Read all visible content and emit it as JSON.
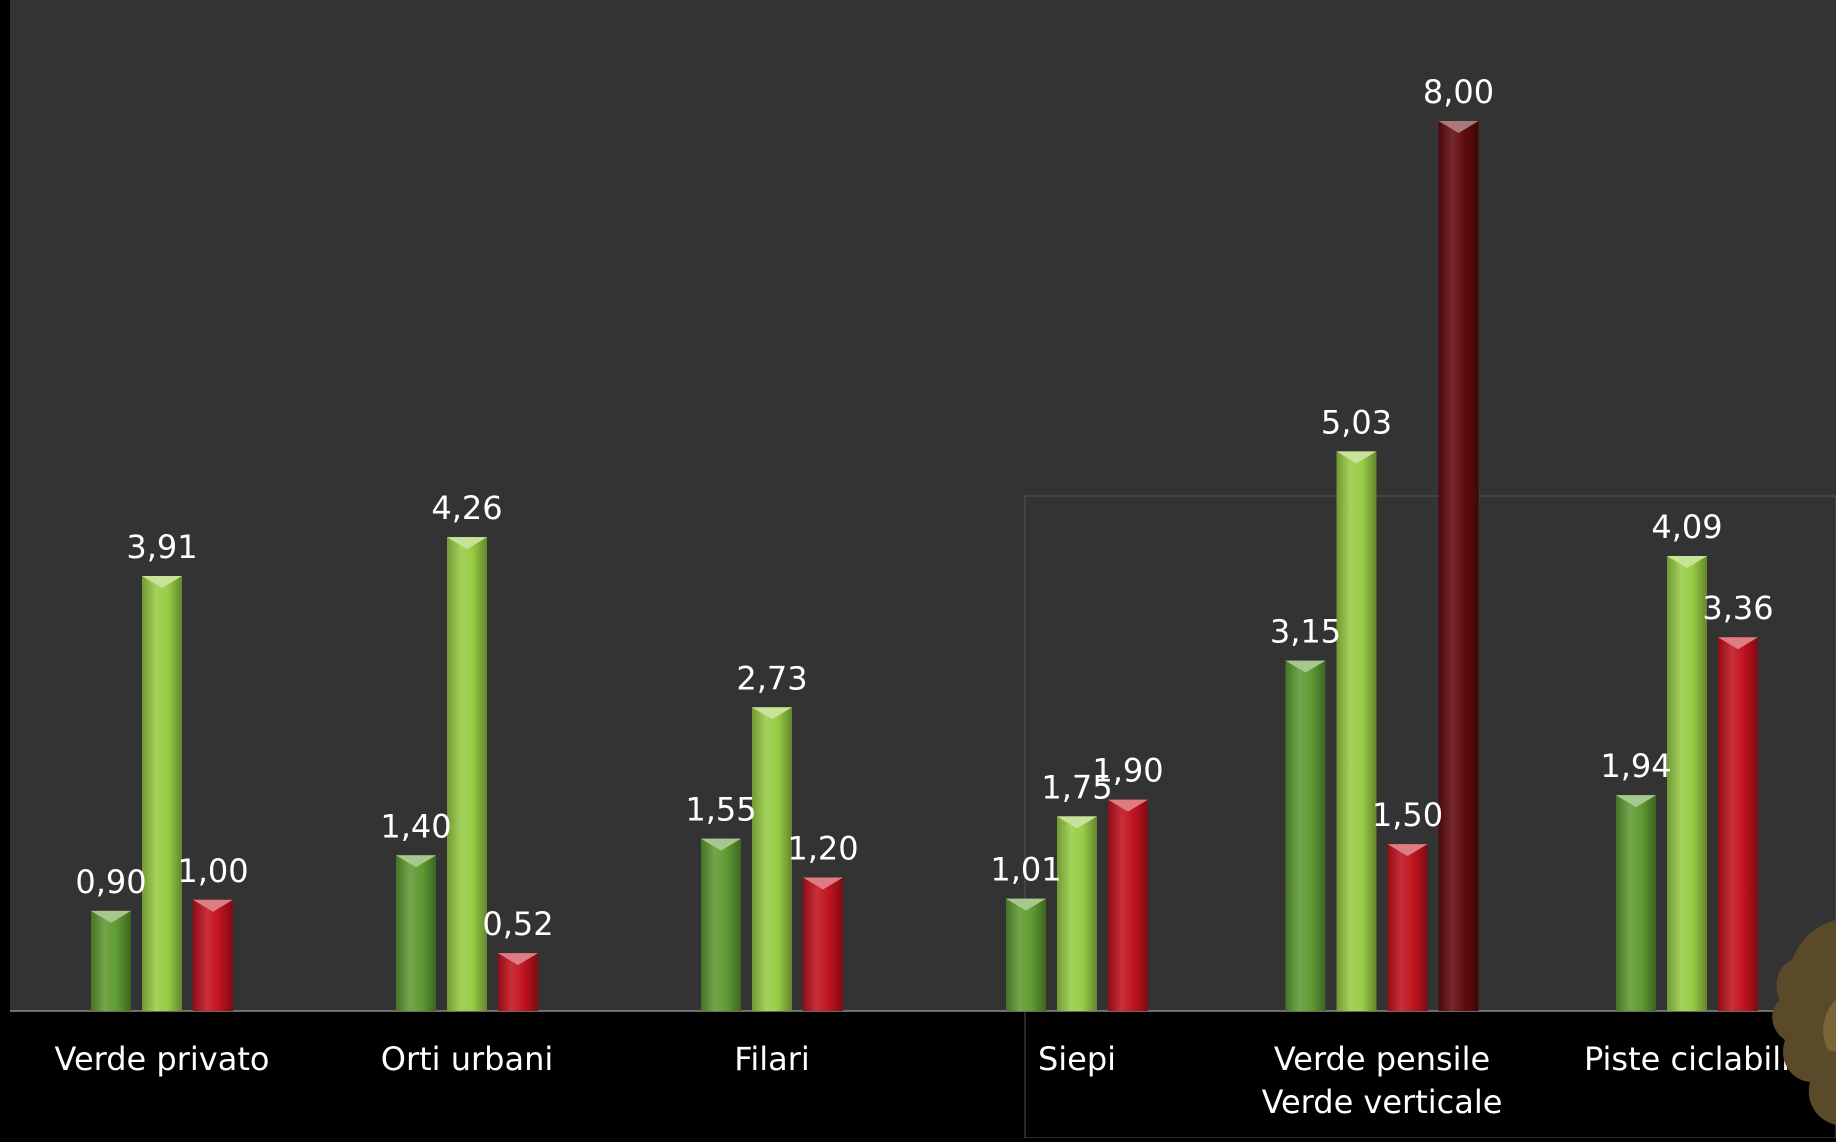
{
  "chart_data": {
    "type": "bar",
    "title": "",
    "xlabel": "",
    "ylabel": "",
    "ylim": [
      0,
      8.6
    ],
    "grid": false,
    "legend": "none",
    "value_format": "comma-decimal-2",
    "categories": [
      [
        "Verde privato"
      ],
      [
        "Orti urbani"
      ],
      [
        "Filari"
      ],
      [
        "Siepi"
      ],
      [
        "Verde pensile",
        "Verde verticale"
      ],
      [
        "Piste ciclabili"
      ]
    ],
    "bars": [
      [
        {
          "value": 0.9,
          "color": "#5f9a33"
        },
        {
          "value": 3.91,
          "color": "#98cc45"
        },
        {
          "value": 1.0,
          "color": "#c1131e"
        }
      ],
      [
        {
          "value": 1.4,
          "color": "#5f9a33"
        },
        {
          "value": 4.26,
          "color": "#98cc45"
        },
        {
          "value": 0.52,
          "color": "#c1131e"
        }
      ],
      [
        {
          "value": 1.55,
          "color": "#5f9a33"
        },
        {
          "value": 2.73,
          "color": "#98cc45"
        },
        {
          "value": 1.2,
          "color": "#c1131e"
        }
      ],
      [
        {
          "value": 1.01,
          "color": "#5f9a33"
        },
        {
          "value": 1.75,
          "color": "#98cc45"
        },
        {
          "value": 1.9,
          "color": "#c1131e"
        }
      ],
      [
        {
          "value": 3.15,
          "color": "#5f9a33"
        },
        {
          "value": 5.03,
          "color": "#98cc45"
        },
        {
          "value": 1.5,
          "color": "#c1131e"
        },
        {
          "value": 8.0,
          "color": "#620b0e"
        }
      ],
      [
        {
          "value": 1.94,
          "color": "#5f9a33"
        },
        {
          "value": 4.09,
          "color": "#98cc45"
        },
        {
          "value": 3.36,
          "color": "#c1131e"
        }
      ]
    ],
    "colors": {
      "plot_background": "#333333",
      "page_background": "#000000",
      "text": "#ffffff"
    }
  }
}
